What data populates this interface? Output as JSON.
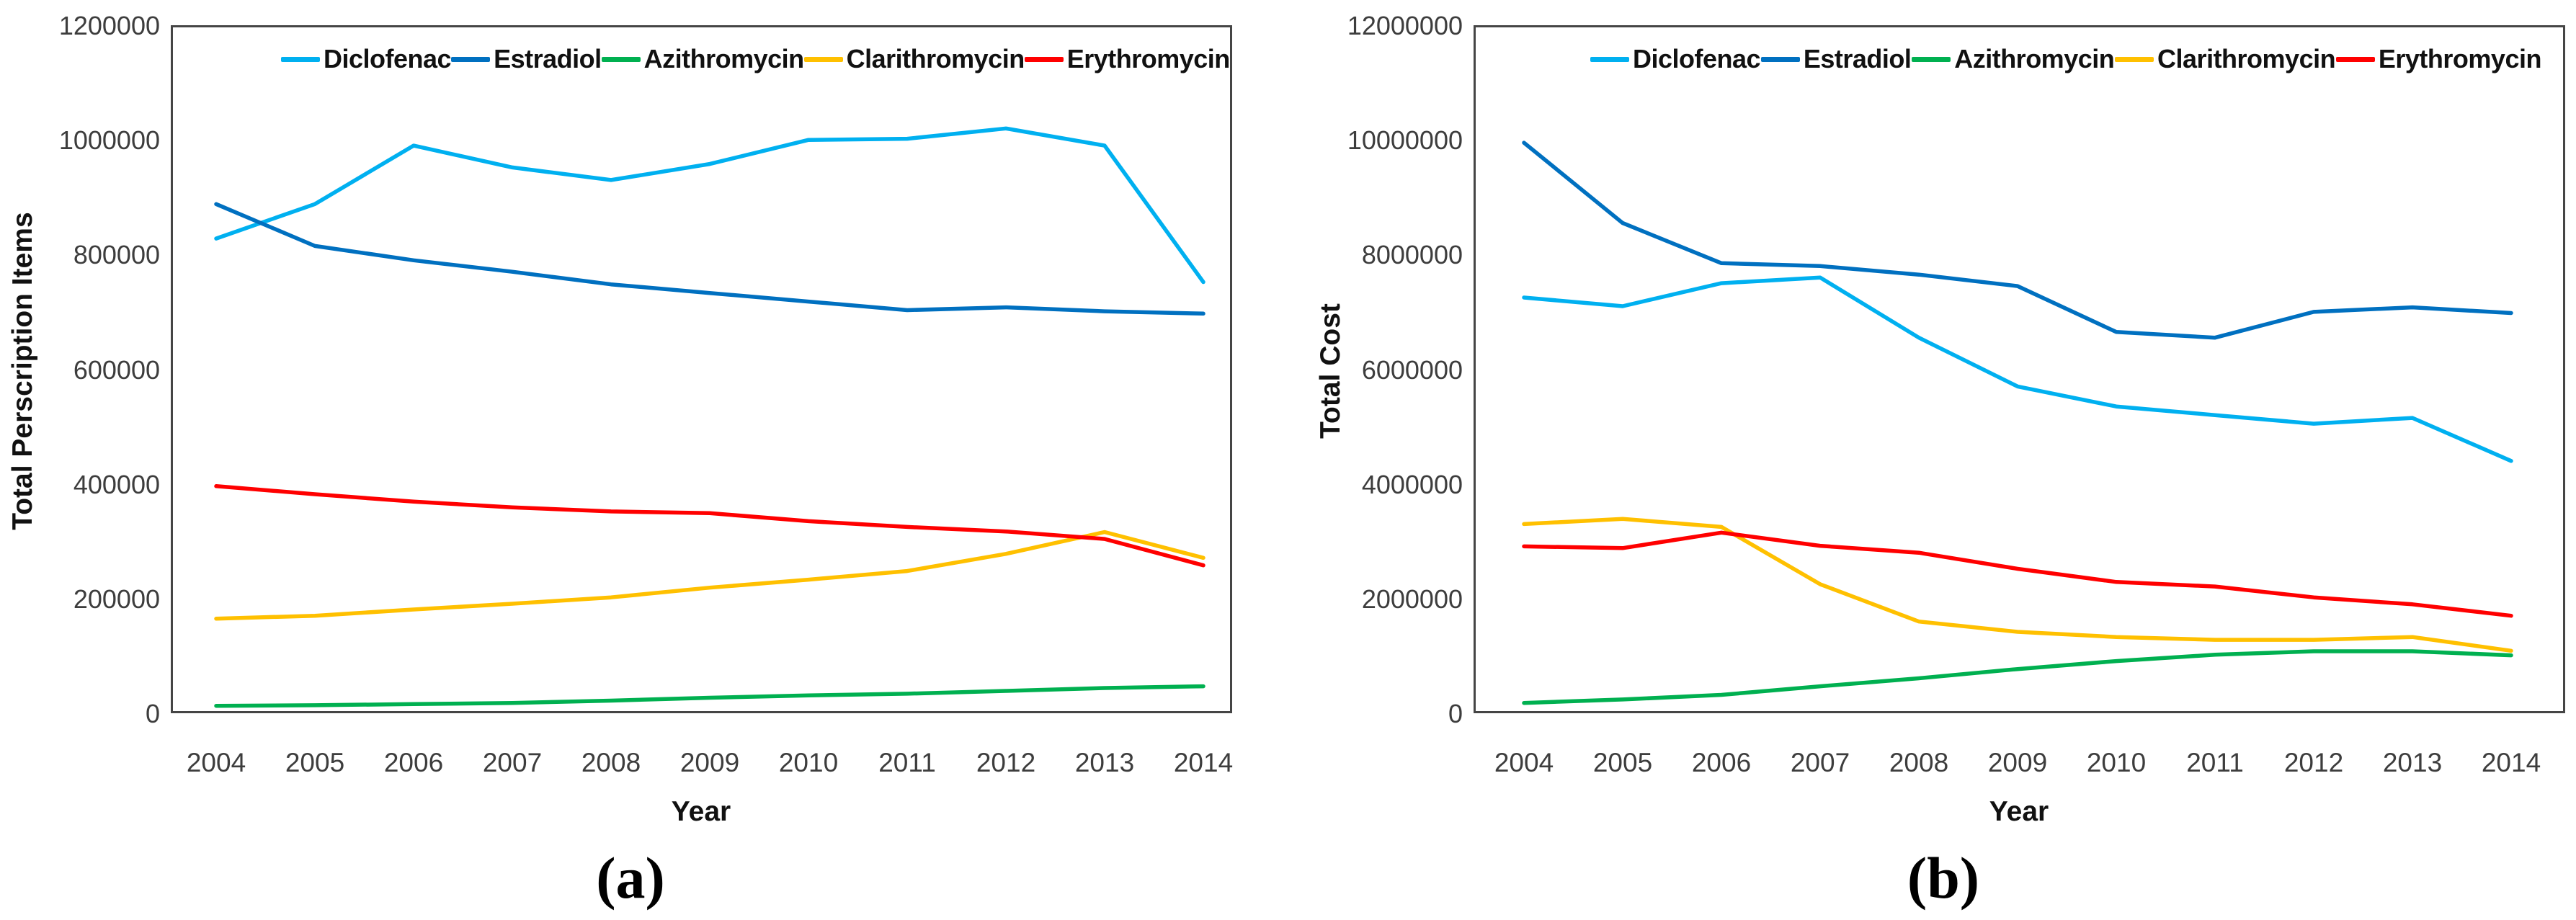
{
  "figure": {
    "background": "#FFFFFF",
    "axis_color": "#454545",
    "tick_label_color": "#3d3d3d"
  },
  "chart_data": [
    {
      "type": "line",
      "caption": "(a)",
      "xlabel": "Year",
      "ylabel": "Total Perscription Items",
      "ylim": [
        0,
        1200000
      ],
      "grid": false,
      "legend_position": "top-inside",
      "ytick_labels": [
        "0",
        "200000",
        "400000",
        "600000",
        "800000",
        "1000000",
        "1200000"
      ],
      "categories": [
        "2004",
        "2005",
        "2006",
        "2007",
        "2008",
        "2009",
        "2010",
        "2011",
        "2012",
        "2013",
        "2014"
      ],
      "series": [
        {
          "name": "Diclofenac",
          "color": "#00B0F0",
          "values": [
            828000,
            888000,
            990000,
            952000,
            930000,
            958000,
            1000000,
            1002000,
            1020000,
            990000,
            752000
          ]
        },
        {
          "name": "Estradiol",
          "color": "#0070C0",
          "values": [
            888000,
            815000,
            790000,
            770000,
            748000,
            733000,
            718000,
            703000,
            708000,
            701000,
            697000
          ]
        },
        {
          "name": "Azithromycin",
          "color": "#00B050",
          "values": [
            13000,
            14000,
            16000,
            18000,
            22000,
            27000,
            31000,
            34000,
            39000,
            44000,
            47000
          ]
        },
        {
          "name": "Clarithromycin",
          "color": "#FFC000",
          "values": [
            165000,
            170000,
            181000,
            191000,
            202000,
            219000,
            233000,
            248000,
            278000,
            316000,
            271000
          ]
        },
        {
          "name": "Erythromycin",
          "color": "#FF0000",
          "values": [
            396000,
            382000,
            369000,
            359000,
            352000,
            349000,
            335000,
            325000,
            317000,
            304000,
            258000
          ]
        }
      ]
    },
    {
      "type": "line",
      "caption": "(b)",
      "xlabel": "Year",
      "ylabel": "Total Cost",
      "ylim": [
        0,
        12000000
      ],
      "grid": false,
      "legend_position": "top-inside",
      "ytick_labels": [
        "0",
        "2000000",
        "4000000",
        "6000000",
        "8000000",
        "10000000",
        "12000000"
      ],
      "categories": [
        "2004",
        "2005",
        "2006",
        "2007",
        "2008",
        "2009",
        "2010",
        "2011",
        "2012",
        "2013",
        "2014"
      ],
      "series": [
        {
          "name": "Diclofenac",
          "color": "#00B0F0",
          "values": [
            7250000,
            7100000,
            7500000,
            7600000,
            6550000,
            5700000,
            5350000,
            5200000,
            5050000,
            5150000,
            4400000
          ]
        },
        {
          "name": "Estradiol",
          "color": "#0070C0",
          "values": [
            9950000,
            8550000,
            7850000,
            7800000,
            7650000,
            7450000,
            6650000,
            6550000,
            7000000,
            7080000,
            6980000
          ]
        },
        {
          "name": "Azithromycin",
          "color": "#00B050",
          "values": [
            180000,
            240000,
            320000,
            470000,
            610000,
            770000,
            910000,
            1020000,
            1080000,
            1080000,
            1010000
          ]
        },
        {
          "name": "Clarithromycin",
          "color": "#FFC000",
          "values": [
            3300000,
            3390000,
            3250000,
            2250000,
            1600000,
            1420000,
            1330000,
            1280000,
            1280000,
            1330000,
            1090000
          ]
        },
        {
          "name": "Erythromycin",
          "color": "#FF0000",
          "values": [
            2910000,
            2880000,
            3150000,
            2920000,
            2800000,
            2520000,
            2290000,
            2210000,
            2020000,
            1900000,
            1700000
          ]
        }
      ]
    }
  ]
}
